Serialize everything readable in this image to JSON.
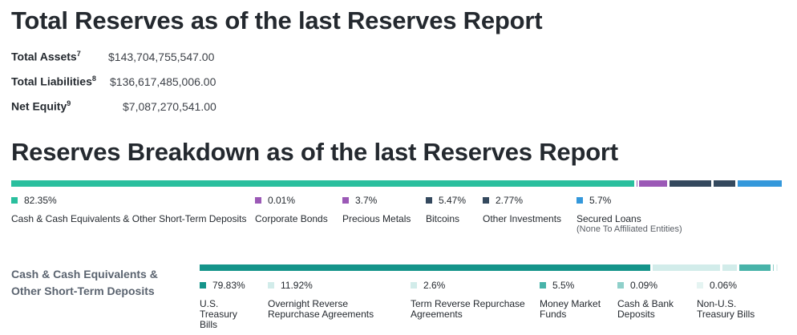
{
  "title_total_reserves": "Total Reserves as of the last Reserves Report",
  "totals": [
    {
      "label": "Total Assets",
      "footnote": "7",
      "value": "$143,704,755,547.00"
    },
    {
      "label": "Total Liabilities",
      "footnote": "8",
      "value": "$136,617,485,006.00"
    },
    {
      "label": "Net Equity",
      "footnote": "9",
      "value": "$7,087,270,541.00"
    }
  ],
  "title_breakdown": "Reserves Breakdown as of the last Reserves Report",
  "breakdown": {
    "segments": [
      {
        "pct": "82.35%",
        "value": 82.35,
        "label": "Cash & Cash Equivalents & Other Short-Term Deposits",
        "sub": "",
        "color": "#2abf9e"
      },
      {
        "pct": "0.01%",
        "value": 0.01,
        "label": "Corporate Bonds",
        "sub": "",
        "color": "#9b59b6"
      },
      {
        "pct": "3.7%",
        "value": 3.7,
        "label": "Precious Metals",
        "sub": "",
        "color": "#9b59b6"
      },
      {
        "pct": "5.47%",
        "value": 5.47,
        "label": "Bitcoins",
        "sub": "",
        "color": "#34495e"
      },
      {
        "pct": "2.77%",
        "value": 2.77,
        "label": "Other Investments",
        "sub": "",
        "color": "#34495e"
      },
      {
        "pct": "5.7%",
        "value": 5.7,
        "label": "Secured Loans",
        "sub": "(None To Affiliated Entities)",
        "color": "#3498db"
      }
    ]
  },
  "cash_section": {
    "label": "Cash & Cash Equivalents &\nOther Short-Term Deposits",
    "segments": [
      {
        "pct": "79.83%",
        "value": 79.83,
        "label": "U.S.\nTreasury\nBills",
        "color": "#15948a"
      },
      {
        "pct": "11.92%",
        "value": 11.92,
        "label": "Overnight Reverse\nRepurchase Agreements",
        "color": "#d2ecea"
      },
      {
        "pct": "2.6%",
        "value": 2.6,
        "label": "Term Reverse Repurchase\nAgreements",
        "color": "#d2ecea"
      },
      {
        "pct": "5.5%",
        "value": 5.5,
        "label": "Money Market\nFunds",
        "color": "#48b3a9"
      },
      {
        "pct": "0.09%",
        "value": 0.09,
        "label": "Cash & Bank\nDeposits",
        "color": "#8fd0ca"
      },
      {
        "pct": "0.06%",
        "value": 0.06,
        "label": "Non-U.S.\nTreasury Bills",
        "color": "#e5f4f2"
      }
    ]
  }
}
